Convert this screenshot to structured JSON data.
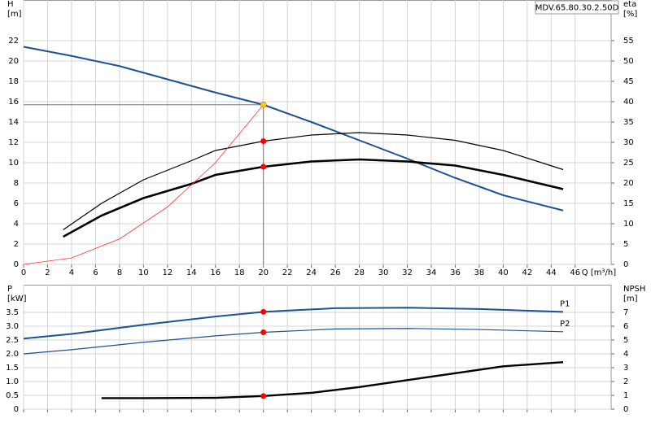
{
  "chart_data": [
    {
      "type": "line",
      "title": "MDV.65.80.30.2.50D",
      "ylabel": "H",
      "yunit": "[m]",
      "y2label": "eta",
      "y2unit": "[%]",
      "xlabel": "Q [m³/h]",
      "xlim": [
        0,
        49
      ],
      "xticks": [
        0,
        2,
        4,
        6,
        8,
        10,
        12,
        14,
        16,
        18,
        20,
        22,
        24,
        26,
        28,
        30,
        32,
        34,
        36,
        38,
        40,
        42,
        44,
        46
      ],
      "ylim": [
        0,
        26
      ],
      "yticks": [
        0,
        2,
        4,
        6,
        8,
        10,
        12,
        14,
        16,
        18,
        20,
        22
      ],
      "y2lim": [
        0,
        65
      ],
      "y2ticks": [
        0,
        5,
        10,
        15,
        20,
        25,
        30,
        35,
        40,
        45,
        50,
        55
      ],
      "grid": true,
      "show_xtick_labels": true,
      "series": [
        {
          "color": "#1f5090",
          "width": 2,
          "axis": "y",
          "x": [
            0,
            4,
            8,
            12,
            16,
            20,
            24,
            28,
            32,
            36,
            40,
            45
          ],
          "values": [
            21.4,
            20.5,
            19.5,
            18.2,
            16.9,
            15.7,
            14.0,
            12.2,
            10.4,
            8.5,
            6.8,
            5.3
          ]
        },
        {
          "color": "#000000",
          "width": 1.2,
          "axis": "y2",
          "x": [
            3.3,
            6.5,
            10,
            14,
            16,
            20,
            24,
            28,
            32,
            36,
            40,
            45
          ],
          "values": [
            8.5,
            15,
            20.8,
            25.5,
            28,
            30.3,
            31.8,
            32.4,
            31.8,
            30.5,
            28,
            23.3
          ]
        },
        {
          "color": "#000000",
          "width": 2.6,
          "axis": "y2",
          "x": [
            3.3,
            6.5,
            10,
            14,
            16,
            20,
            24,
            28,
            32,
            36,
            40,
            45
          ],
          "values": [
            6.8,
            12,
            16.3,
            19.8,
            22,
            24,
            25.3,
            25.8,
            25.3,
            24.3,
            22,
            18.5
          ]
        },
        {
          "color": "#ff3030",
          "width": 0.8,
          "axis": "y",
          "x": [
            0,
            4,
            8,
            12,
            16,
            20
          ],
          "values": [
            0,
            0.63,
            2.5,
            5.65,
            10.0,
            15.7
          ]
        }
      ],
      "markers": [
        {
          "x": 20,
          "y": 15.7,
          "axis": "y",
          "color": "#ffc820",
          "crosshair": true
        },
        {
          "x": 20,
          "y": 30.3,
          "axis": "y2",
          "color": "#ff0000"
        },
        {
          "x": 20,
          "y": 24,
          "axis": "y2",
          "color": "#ff0000"
        }
      ]
    },
    {
      "type": "line",
      "ylabel": "P",
      "yunit": "[kW]",
      "y2label": "NPSH",
      "y2unit": "[m]",
      "xlim": [
        0,
        49
      ],
      "xticks": [
        0,
        2,
        4,
        6,
        8,
        10,
        12,
        14,
        16,
        18,
        20,
        22,
        24,
        26,
        28,
        30,
        32,
        34,
        36,
        38,
        40,
        42,
        44,
        46
      ],
      "ylim": [
        0,
        4.5
      ],
      "yticks": [
        0,
        0.5,
        {
          "value": 1,
          "label": "1.0"
        },
        1.5,
        {
          "value": 2,
          "label": "2.0"
        },
        2.5,
        {
          "value": 3,
          "label": "3.0"
        },
        3.5
      ],
      "y2lim": [
        0,
        9
      ],
      "y2ticks": [
        0,
        1,
        2,
        3,
        4,
        5,
        6,
        7
      ],
      "grid": true,
      "show_xtick_labels": false,
      "series": [
        {
          "name": "P1",
          "color": "#1f5090",
          "width": 2,
          "axis": "y",
          "x": [
            0,
            4,
            10,
            16,
            20,
            26,
            32,
            38,
            45
          ],
          "values": [
            2.55,
            2.72,
            3.05,
            3.35,
            3.52,
            3.65,
            3.67,
            3.62,
            3.52
          ]
        },
        {
          "name": "P2",
          "color": "#1f5090",
          "width": 1.2,
          "axis": "y",
          "x": [
            0,
            4,
            10,
            16,
            20,
            26,
            32,
            38,
            45
          ],
          "values": [
            2.0,
            2.15,
            2.42,
            2.65,
            2.78,
            2.9,
            2.92,
            2.88,
            2.8
          ]
        },
        {
          "color": "#000000",
          "width": 2.4,
          "axis": "y2",
          "x": [
            6.5,
            10,
            16,
            20,
            24,
            28,
            32,
            36,
            40,
            45
          ],
          "values": [
            0.8,
            0.8,
            0.82,
            0.95,
            1.18,
            1.6,
            2.1,
            2.6,
            3.1,
            3.4
          ]
        }
      ],
      "markers": [
        {
          "x": 20,
          "y": 3.52,
          "axis": "y",
          "color": "#ff0000"
        },
        {
          "x": 20,
          "y": 2.78,
          "axis": "y",
          "color": "#ff0000"
        },
        {
          "x": 20,
          "y": 0.95,
          "axis": "y2",
          "color": "#ff0000"
        }
      ]
    }
  ]
}
